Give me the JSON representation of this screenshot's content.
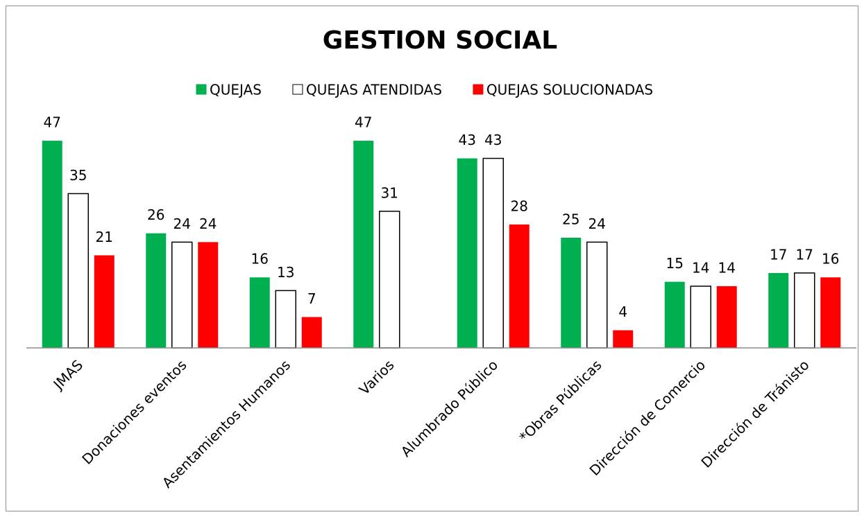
{
  "chart_data": {
    "type": "bar",
    "title": "GESTION SOCIAL",
    "categories": [
      "JMAS",
      "Donaciones eventos",
      "Asentamientos Humanos",
      "Varios",
      "Alumbrado Público",
      "*Obras Públicas",
      "Dirección de Comercio",
      "Dirección de Tránisto"
    ],
    "series": [
      {
        "name": "QUEJAS",
        "color": "#00b050",
        "values": [
          47,
          26,
          16,
          47,
          43,
          25,
          15,
          17
        ]
      },
      {
        "name": "QUEJAS ATENDIDAS",
        "color": "#ffffff",
        "values": [
          35,
          24,
          13,
          31,
          43,
          24,
          14,
          17
        ]
      },
      {
        "name": "QUEJAS SOLUCIONADAS",
        "color": "#ff0000",
        "values": [
          21,
          24,
          7,
          null,
          28,
          4,
          14,
          16
        ]
      }
    ],
    "ylim": [
      0,
      50
    ],
    "legend": "top"
  }
}
